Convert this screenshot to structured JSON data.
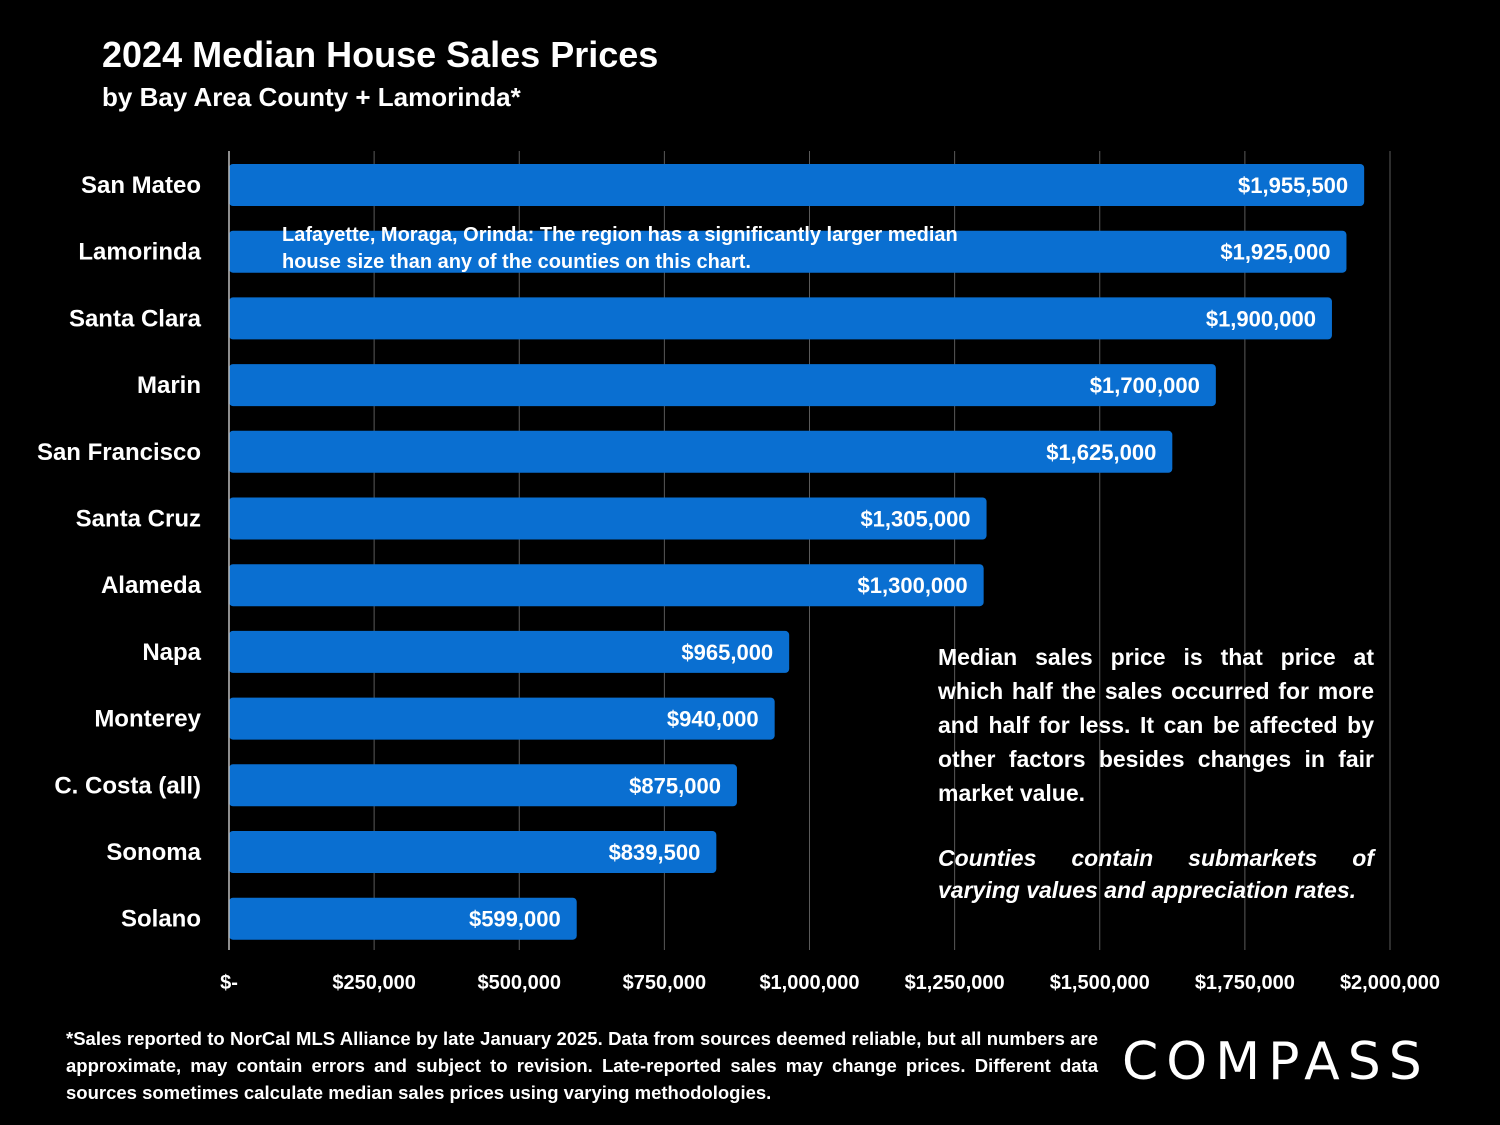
{
  "chart_data": {
    "type": "bar",
    "orientation": "horizontal",
    "title": "2024 Median House Sales Prices",
    "subtitle": "by Bay Area County + Lamorinda*",
    "categories": [
      "San Mateo",
      "Lamorinda",
      "Santa Clara",
      "Marin",
      "San Francisco",
      "Santa Cruz",
      "Alameda",
      "Napa",
      "Monterey",
      "C. Costa (all)",
      "Sonoma",
      "Solano"
    ],
    "values": [
      1955500,
      1925000,
      1900000,
      1700000,
      1625000,
      1305000,
      1300000,
      965000,
      940000,
      875000,
      839500,
      599000
    ],
    "value_labels": [
      "$1,955,500",
      "$1,925,000",
      "$1,900,000",
      "$1,700,000",
      "$1,625,000",
      "$1,305,000",
      "$1,300,000",
      "$965,000",
      "$940,000",
      "$875,000",
      "$839,500",
      "$599,000"
    ],
    "xlim": [
      0,
      2000000
    ],
    "xticks": [
      0,
      250000,
      500000,
      750000,
      1000000,
      1250000,
      1500000,
      1750000,
      2000000
    ],
    "xtick_labels": [
      "$-",
      "$250,000",
      "$500,000",
      "$750,000",
      "$1,000,000",
      "$1,250,000",
      "$1,500,000",
      "$1,750,000",
      "$2,000,000"
    ],
    "grid": "vertical",
    "bar_color": "#0a6fd1"
  },
  "annotations": {
    "lamorinda": "Lafayette, Moraga, Orinda:  The region has a significantly larger median house size than any of the counties on this chart.",
    "median_note": "Median sales price is that price at which half the sales occurred for more and half for less. It can be affected by other factors besides changes in fair market value.",
    "counties_note": "Counties contain submarkets of varying values and appreciation rates."
  },
  "footnote": "*Sales reported to NorCal MLS Alliance by late January 2025. Data from sources deemed reliable, but all numbers are approximate, may contain errors and subject to revision. Late-reported sales may change prices. Different data sources sometimes calculate median sales prices using varying methodologies.",
  "logo": "COMPASS"
}
